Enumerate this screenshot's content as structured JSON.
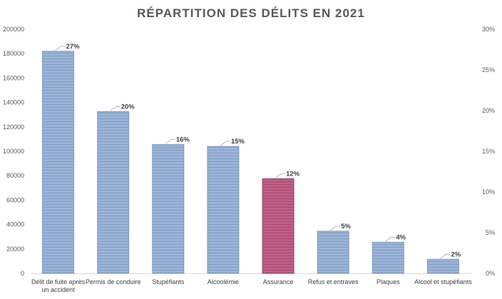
{
  "chart_data": {
    "type": "bar",
    "title": "RÉPARTITION DES DÉLITS EN 2021",
    "categories": [
      [
        "Délit de fuite après",
        "un accident"
      ],
      [
        "Permis de conduire"
      ],
      [
        "Stupéfiants"
      ],
      [
        "Alcoolémie"
      ],
      [
        "Assurance"
      ],
      [
        "Refus et entraves"
      ],
      [
        "Plaques"
      ],
      [
        "Alcool et stupéfiants"
      ]
    ],
    "values": [
      182000,
      132500,
      105500,
      104000,
      77500,
      34500,
      25500,
      11500
    ],
    "data_labels": [
      "27%",
      "20%",
      "16%",
      "15%",
      "12%",
      "5%",
      "4%",
      "2%"
    ],
    "y_left": {
      "min": 0,
      "max": 200000,
      "ticks": [
        "0",
        "20000",
        "40000",
        "60000",
        "80000",
        "100000",
        "120000",
        "140000",
        "160000",
        "180000",
        "200000"
      ]
    },
    "y_right": {
      "min": 0,
      "max": 30,
      "ticks": [
        "0%",
        "5%",
        "10%",
        "15%",
        "20%",
        "25%",
        "30%"
      ]
    },
    "grid": false,
    "legend": "none",
    "colors": {
      "bar": "#8ea9cf",
      "bar_stroke": "#7f9ac2",
      "highlight": "#b5547a",
      "highlight_stroke": "#9c4468",
      "highlight_index": 4,
      "axis": "#d9d9d9",
      "text": "#595959"
    }
  }
}
